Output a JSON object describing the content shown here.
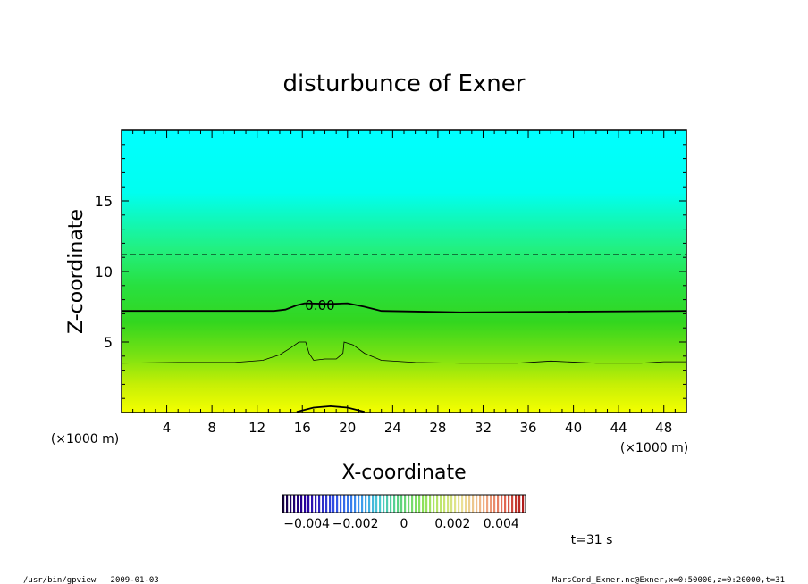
{
  "chart_data": {
    "type": "heatmap",
    "title": "disturbunce of Exner",
    "xlabel": "X-coordinate",
    "ylabel": "Z-coordinate",
    "x_unit": "(×1000 m)",
    "y_unit": "(×1000 m)",
    "xlim": [
      0,
      50
    ],
    "ylim": [
      0,
      20
    ],
    "x_ticks": [
      4,
      8,
      12,
      16,
      20,
      24,
      28,
      32,
      36,
      40,
      44,
      48
    ],
    "y_ticks": [
      5,
      10,
      15
    ],
    "contour_label": "0.00",
    "contours": [
      {
        "level": 0.0,
        "style": "solid-thick",
        "points": [
          [
            0,
            7.2
          ],
          [
            13.5,
            7.2
          ],
          [
            14.5,
            7.3
          ],
          [
            15.5,
            7.6
          ],
          [
            16.2,
            7.75
          ],
          [
            18.5,
            7.7
          ],
          [
            20,
            7.75
          ],
          [
            21.5,
            7.5
          ],
          [
            23,
            7.2
          ],
          [
            30,
            7.1
          ],
          [
            50,
            7.2
          ]
        ]
      },
      {
        "level": -0.001,
        "style": "solid-thin",
        "points": [
          [
            0,
            3.5
          ],
          [
            5,
            3.55
          ],
          [
            10,
            3.55
          ],
          [
            12.5,
            3.7
          ],
          [
            14,
            4.1
          ],
          [
            15,
            4.6
          ],
          [
            15.7,
            5.0
          ],
          [
            16.3,
            5.0
          ],
          [
            16.6,
            4.2
          ],
          [
            17,
            3.7
          ],
          [
            18,
            3.8
          ],
          [
            19,
            3.8
          ],
          [
            19.6,
            4.2
          ],
          [
            19.7,
            5.0
          ],
          [
            20.5,
            4.8
          ],
          [
            21.5,
            4.2
          ],
          [
            23,
            3.7
          ],
          [
            26,
            3.55
          ],
          [
            30,
            3.5
          ],
          [
            35,
            3.5
          ],
          [
            38,
            3.65
          ],
          [
            42,
            3.5
          ],
          [
            46,
            3.5
          ],
          [
            48,
            3.6
          ],
          [
            50,
            3.6
          ]
        ]
      },
      {
        "level": 0.002,
        "style": "solid-thick",
        "points": [
          [
            15.5,
            0.05
          ],
          [
            17,
            0.35
          ],
          [
            18.5,
            0.45
          ],
          [
            20,
            0.35
          ],
          [
            21.5,
            0.05
          ]
        ]
      },
      {
        "level": 0.002,
        "style": "dashed",
        "points": [
          [
            0,
            11.2
          ],
          [
            50,
            11.2
          ]
        ]
      }
    ],
    "colorbar": {
      "range": [
        -0.005,
        0.005
      ],
      "tick_labels": [
        "−0.004",
        "−0.002",
        "0",
        "0.002",
        "0.004"
      ],
      "tick_values": [
        -0.004,
        -0.002,
        0,
        0.002,
        0.004
      ]
    },
    "colors": {
      "top": "#00ffff",
      "mid": "#22dd22",
      "bottom": "#ffff00"
    }
  },
  "annotations": {
    "time": "t=31 s",
    "program_info": "/usr/bin/gpview   2009-01-03",
    "file_info": "MarsCond_Exner.nc@Exner,x=0:50000,z=0:20000,t=31"
  }
}
